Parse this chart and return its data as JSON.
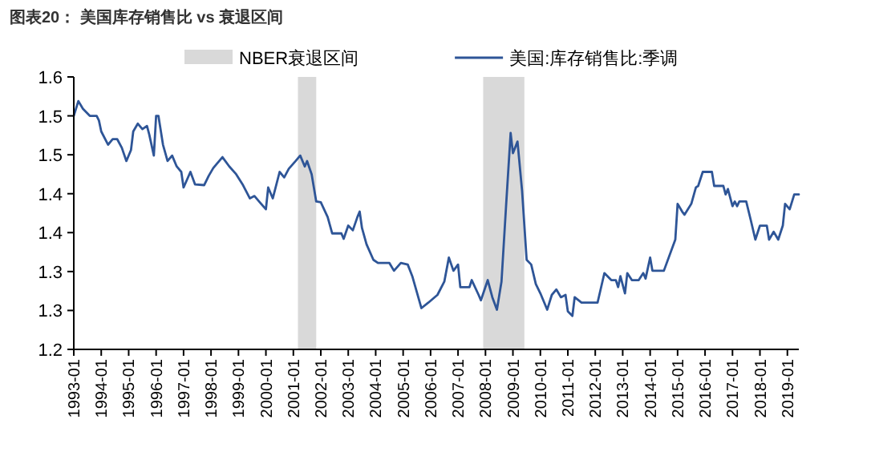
{
  "chart_data": {
    "type": "line",
    "title": "图表20： 美国库存销售比 vs 衰退区间",
    "xlim": [
      "1993-01",
      "2019-06"
    ],
    "xticks": [
      "1993-01",
      "1994-01",
      "1995-01",
      "1996-01",
      "1997-01",
      "1998-01",
      "1999-01",
      "2000-01",
      "2001-01",
      "2002-01",
      "2003-01",
      "2004-01",
      "2005-01",
      "2006-01",
      "2007-01",
      "2008-01",
      "2009-01",
      "2010-01",
      "2011-01",
      "2012-01",
      "2013-01",
      "2014-01",
      "2015-01",
      "2016-01",
      "2017-01",
      "2018-01",
      "2019-01"
    ],
    "ylim": [
      1.2,
      1.55
    ],
    "yticks": [
      1.2,
      {
        "value": 1.25,
        "label": "1.3"
      },
      1.3,
      {
        "value": 1.35,
        "label": "1.4"
      },
      1.4,
      {
        "value": 1.45,
        "label": "1.5"
      },
      1.5,
      {
        "value": 1.55,
        "label": "1.6"
      }
    ],
    "grid": false,
    "legend": "top",
    "line_style": "solid",
    "marker": "none",
    "bands": [
      {
        "axis": "x",
        "from": "2001-03",
        "to": "2001-11",
        "label": "NBER衰退区间",
        "color": "#d9d9d9"
      },
      {
        "axis": "x",
        "from": "2007-12",
        "to": "2009-06",
        "color": "#d9d9d9"
      }
    ],
    "series": [
      {
        "name": "美国:库存销售比:季调",
        "color": "#2e5597",
        "x": [
          "1993-01",
          "1993-03",
          "1993-05",
          "1993-08",
          "1993-11",
          "1993-12",
          "1994-01",
          "1994-04",
          "1994-06",
          "1994-08",
          "1994-10",
          "1994-12",
          "1995-02",
          "1995-03",
          "1995-05",
          "1995-07",
          "1995-09",
          "1995-10",
          "1995-12",
          "1996-01",
          "1996-02",
          "1996-04",
          "1996-06",
          "1996-08",
          "1996-10",
          "1996-12",
          "1997-01",
          "1997-04",
          "1997-06",
          "1997-10",
          "1997-12",
          "1998-02",
          "1998-06",
          "1998-09",
          "1998-12",
          "1999-03",
          "1999-06",
          "1999-08",
          "1999-10",
          "2000-01",
          "2000-02",
          "2000-04",
          "2000-07",
          "2000-09",
          "2000-11",
          "2001-02",
          "2001-04",
          "2001-06",
          "2001-07",
          "2001-09",
          "2001-11",
          "2002-01",
          "2002-04",
          "2002-06",
          "2002-10",
          "2002-11",
          "2003-01",
          "2003-03",
          "2003-05",
          "2003-06",
          "2003-07",
          "2003-09",
          "2003-12",
          "2004-02",
          "2004-07",
          "2004-09",
          "2004-12",
          "2005-03",
          "2005-05",
          "2005-09",
          "2005-12",
          "2006-04",
          "2006-07",
          "2006-09",
          "2006-11",
          "2007-01",
          "2007-02",
          "2007-06",
          "2007-07",
          "2007-10",
          "2007-11",
          "2008-02",
          "2008-04",
          "2008-06",
          "2008-08",
          "2008-10",
          "2008-12",
          "2009-01",
          "2009-03",
          "2009-05",
          "2009-07",
          "2009-09",
          "2009-11",
          "2010-01",
          "2010-04",
          "2010-06",
          "2010-08",
          "2010-10",
          "2010-12",
          "2011-01",
          "2011-03",
          "2011-04",
          "2011-07",
          "2012-02",
          "2012-05",
          "2012-08",
          "2012-10",
          "2012-11",
          "2012-12",
          "2013-02",
          "2013-03",
          "2013-05",
          "2013-08",
          "2013-10",
          "2013-11",
          "2014-01",
          "2014-02",
          "2014-07",
          "2014-12",
          "2015-01",
          "2015-03",
          "2015-04",
          "2015-07",
          "2015-09",
          "2015-10",
          "2015-12",
          "2016-04",
          "2016-05",
          "2016-09",
          "2016-10",
          "2016-11",
          "2017-01",
          "2017-02",
          "2017-03",
          "2017-04",
          "2017-07",
          "2017-09",
          "2017-11",
          "2018-01",
          "2018-04",
          "2018-05",
          "2018-07",
          "2018-09",
          "2018-11",
          "2018-12",
          "2019-02",
          "2019-04",
          "2019-06"
        ],
        "values": [
          1.5,
          1.519,
          1.509,
          1.5,
          1.5,
          1.494,
          1.48,
          1.463,
          1.47,
          1.47,
          1.459,
          1.442,
          1.456,
          1.48,
          1.49,
          1.483,
          1.487,
          1.476,
          1.449,
          1.5,
          1.5,
          1.463,
          1.442,
          1.449,
          1.435,
          1.428,
          1.408,
          1.428,
          1.412,
          1.411,
          1.423,
          1.433,
          1.447,
          1.435,
          1.425,
          1.411,
          1.394,
          1.397,
          1.39,
          1.38,
          1.408,
          1.394,
          1.428,
          1.421,
          1.432,
          1.442,
          1.449,
          1.435,
          1.442,
          1.425,
          1.39,
          1.389,
          1.37,
          1.349,
          1.349,
          1.342,
          1.359,
          1.353,
          1.37,
          1.377,
          1.356,
          1.335,
          1.315,
          1.311,
          1.311,
          1.301,
          1.311,
          1.309,
          1.294,
          1.253,
          1.26,
          1.27,
          1.287,
          1.318,
          1.301,
          1.309,
          1.28,
          1.28,
          1.289,
          1.27,
          1.263,
          1.289,
          1.267,
          1.251,
          1.287,
          1.384,
          1.478,
          1.452,
          1.467,
          1.404,
          1.315,
          1.309,
          1.284,
          1.272,
          1.251,
          1.27,
          1.277,
          1.267,
          1.27,
          1.249,
          1.243,
          1.267,
          1.26,
          1.26,
          1.298,
          1.289,
          1.289,
          1.28,
          1.294,
          1.272,
          1.298,
          1.289,
          1.289,
          1.298,
          1.291,
          1.318,
          1.301,
          1.301,
          1.341,
          1.387,
          1.377,
          1.373,
          1.387,
          1.408,
          1.41,
          1.428,
          1.428,
          1.41,
          1.41,
          1.399,
          1.406,
          1.384,
          1.39,
          1.384,
          1.39,
          1.39,
          1.366,
          1.341,
          1.359,
          1.359,
          1.341,
          1.351,
          1.341,
          1.359,
          1.387,
          1.38,
          1.399,
          1.399
        ]
      }
    ]
  }
}
